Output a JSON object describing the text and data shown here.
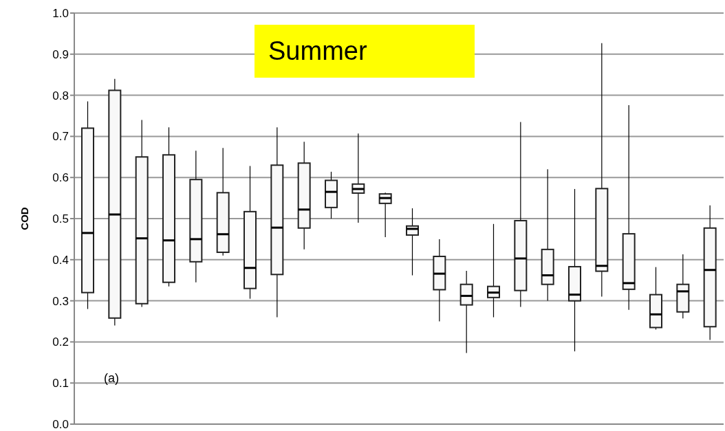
{
  "chart_data": {
    "type": "box",
    "title": "Summer",
    "ylabel": "COD",
    "annotations": [
      "(a)"
    ],
    "categories": [
      null,
      null,
      null,
      null,
      null,
      null,
      null,
      null,
      null,
      null,
      null,
      null,
      null,
      null,
      null,
      null,
      null,
      null,
      null,
      null,
      null,
      null,
      null,
      null
    ],
    "color": "#f8f8f8",
    "boxes": [
      {
        "low": 0.28,
        "q1": 0.32,
        "median": 0.465,
        "q3": 0.72,
        "high": 0.785
      },
      {
        "low": 0.24,
        "q1": 0.258,
        "median": 0.51,
        "q3": 0.812,
        "high": 0.84
      },
      {
        "low": 0.285,
        "q1": 0.293,
        "median": 0.452,
        "q3": 0.65,
        "high": 0.74
      },
      {
        "low": 0.335,
        "q1": 0.345,
        "median": 0.447,
        "q3": 0.655,
        "high": 0.722
      },
      {
        "low": 0.345,
        "q1": 0.395,
        "median": 0.45,
        "q3": 0.595,
        "high": 0.665
      },
      {
        "low": 0.41,
        "q1": 0.418,
        "median": 0.462,
        "q3": 0.563,
        "high": 0.672
      },
      {
        "low": 0.305,
        "q1": 0.33,
        "median": 0.38,
        "q3": 0.517,
        "high": 0.628
      },
      {
        "low": 0.26,
        "q1": 0.364,
        "median": 0.478,
        "q3": 0.63,
        "high": 0.722
      },
      {
        "low": 0.425,
        "q1": 0.477,
        "median": 0.522,
        "q3": 0.635,
        "high": 0.687
      },
      {
        "low": 0.5,
        "q1": 0.527,
        "median": 0.565,
        "q3": 0.593,
        "high": 0.614
      },
      {
        "low": 0.49,
        "q1": 0.562,
        "median": 0.572,
        "q3": 0.584,
        "high": 0.707
      },
      {
        "low": 0.455,
        "q1": 0.537,
        "median": 0.55,
        "q3": 0.56,
        "high": 0.563
      },
      {
        "low": 0.362,
        "q1": 0.46,
        "median": 0.475,
        "q3": 0.482,
        "high": 0.525
      },
      {
        "low": 0.25,
        "q1": 0.327,
        "median": 0.366,
        "q3": 0.408,
        "high": 0.45
      },
      {
        "low": 0.173,
        "q1": 0.29,
        "median": 0.312,
        "q3": 0.34,
        "high": 0.373
      },
      {
        "low": 0.26,
        "q1": 0.308,
        "median": 0.32,
        "q3": 0.335,
        "high": 0.487
      },
      {
        "low": 0.285,
        "q1": 0.325,
        "median": 0.403,
        "q3": 0.495,
        "high": 0.735
      },
      {
        "low": 0.3,
        "q1": 0.34,
        "median": 0.362,
        "q3": 0.425,
        "high": 0.62
      },
      {
        "low": 0.177,
        "q1": 0.3,
        "median": 0.315,
        "q3": 0.383,
        "high": 0.572
      },
      {
        "low": 0.31,
        "q1": 0.372,
        "median": 0.385,
        "q3": 0.573,
        "high": 0.927
      },
      {
        "low": 0.278,
        "q1": 0.328,
        "median": 0.343,
        "q3": 0.463,
        "high": 0.776
      },
      {
        "low": 0.23,
        "q1": 0.235,
        "median": 0.267,
        "q3": 0.315,
        "high": 0.382
      },
      {
        "low": 0.257,
        "q1": 0.273,
        "median": 0.323,
        "q3": 0.34,
        "high": 0.413
      },
      {
        "low": 0.205,
        "q1": 0.237,
        "median": 0.375,
        "q3": 0.477,
        "high": 0.532
      }
    ],
    "ylim": [
      0,
      1
    ],
    "yticks": [
      {
        "value": 0,
        "label": "0.0"
      },
      {
        "value": 0.1,
        "label": "0.1"
      },
      {
        "value": 0.2,
        "label": "0.2"
      },
      {
        "value": 0.3,
        "label": "0.3"
      },
      {
        "value": 0.4,
        "label": "0.4"
      },
      {
        "value": 0.5,
        "label": "0.5"
      },
      {
        "value": 0.6,
        "label": "0.6"
      },
      {
        "value": 0.7,
        "label": "0.7"
      },
      {
        "value": 0.8,
        "label": "0.8"
      },
      {
        "value": 0.9,
        "label": "0.9"
      },
      {
        "value": 1,
        "label": "1.0"
      }
    ],
    "grid": "y"
  }
}
